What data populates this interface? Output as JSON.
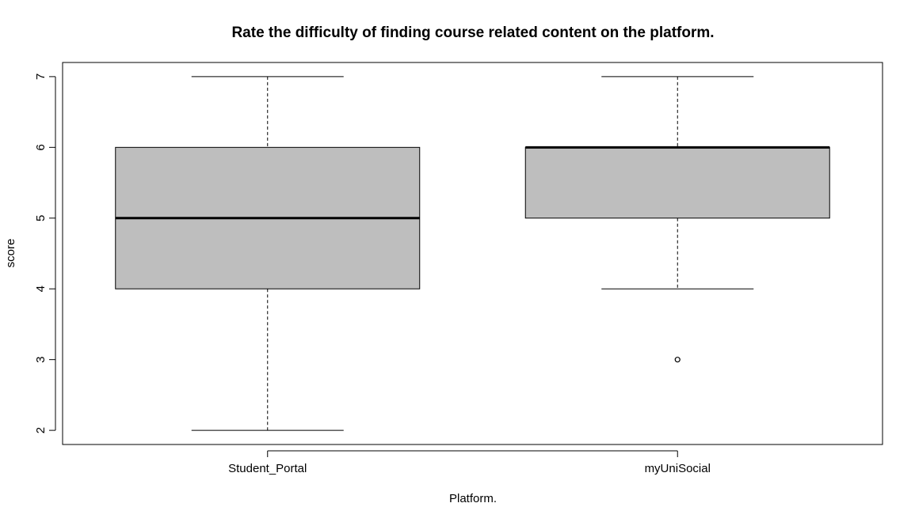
{
  "chart_data": {
    "type": "boxplot",
    "title": "Rate the difficulty of finding course related content on the platform.",
    "xlabel": "Platform.",
    "ylabel": "score",
    "ylim": [
      1.8,
      7.2
    ],
    "yticks": [
      2,
      3,
      4,
      5,
      6,
      7
    ],
    "categories": [
      "Student_Portal",
      "myUniSocial"
    ],
    "boxes": [
      {
        "category": "Student_Portal",
        "whisker_low": 2,
        "q1": 4,
        "median": 5,
        "q3": 6,
        "whisker_high": 7,
        "outliers": []
      },
      {
        "category": "myUniSocial",
        "whisker_low": 4,
        "q1": 5,
        "median": 6,
        "q3": 6,
        "whisker_high": 7,
        "outliers": [
          3
        ]
      }
    ],
    "box_fill": "#bebebe",
    "grid": false,
    "legend": "none"
  }
}
